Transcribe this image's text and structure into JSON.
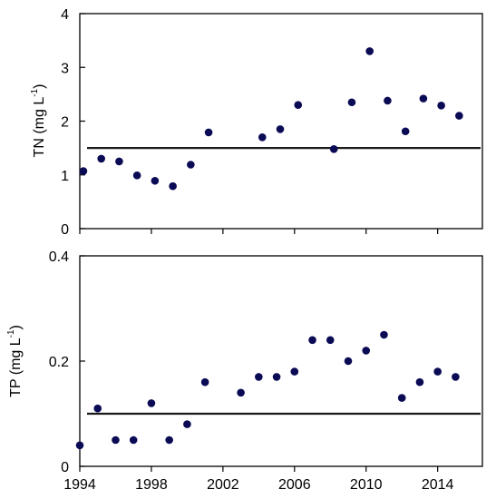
{
  "chart_data": [
    {
      "type": "scatter",
      "ylabel_main": "TN (mg L",
      "ylabel_sup": "-1",
      "ylabel_end": ")",
      "xlim": [
        1994,
        2016.5
      ],
      "ylim": [
        0,
        4
      ],
      "x_ticks": [
        1994,
        1998,
        2002,
        2006,
        2010,
        2014
      ],
      "y_ticks": [
        0,
        1,
        2,
        3,
        4
      ],
      "y_tick_labels": [
        "0",
        "1",
        "2",
        "3",
        "4"
      ],
      "marker_color": "#0a0a55",
      "line_color": "#1a1a1a",
      "reference_line": 1.5,
      "series": [
        {
          "x": [
            1994.2,
            1995.2,
            1996.2,
            1997.2,
            1998.2,
            1999.2,
            2000.2,
            2001.2,
            2004.2,
            2005.2,
            2006.2,
            2008.2,
            2009.2,
            2010.2,
            2011.2,
            2012.2,
            2013.2,
            2014.2,
            2015.2
          ],
          "y": [
            1.07,
            1.3,
            1.25,
            0.99,
            0.89,
            0.79,
            1.19,
            1.79,
            1.7,
            1.85,
            2.3,
            1.48,
            2.35,
            3.3,
            2.38,
            1.81,
            2.42,
            2.29,
            2.1
          ]
        }
      ]
    },
    {
      "type": "scatter",
      "ylabel_main": "TP (mg L",
      "ylabel_sup": "-1",
      "ylabel_end": ")",
      "xlim": [
        1994,
        2016.5
      ],
      "ylim": [
        0,
        0.4
      ],
      "x_ticks": [
        1994,
        1998,
        2002,
        2006,
        2010,
        2014
      ],
      "x_tick_labels": [
        "1994",
        "1998",
        "2002",
        "2006",
        "2010",
        "2014"
      ],
      "y_ticks": [
        0,
        0.2,
        0.4
      ],
      "y_tick_labels": [
        "0",
        "0.2",
        "0.4"
      ],
      "marker_color": "#0a0a55",
      "line_color": "#1a1a1a",
      "reference_line": 0.1,
      "series": [
        {
          "x": [
            1994,
            1995,
            1996,
            1997,
            1998,
            1999,
            2000,
            2001,
            2003,
            2004,
            2005,
            2006,
            2007,
            2008,
            2009,
            2010,
            2011,
            2012,
            2013,
            2014,
            2015
          ],
          "y": [
            0.04,
            0.11,
            0.05,
            0.05,
            0.12,
            0.05,
            0.08,
            0.16,
            0.14,
            0.17,
            0.17,
            0.18,
            0.24,
            0.24,
            0.2,
            0.22,
            0.25,
            0.13,
            0.16,
            0.18,
            0.17
          ]
        }
      ]
    }
  ]
}
